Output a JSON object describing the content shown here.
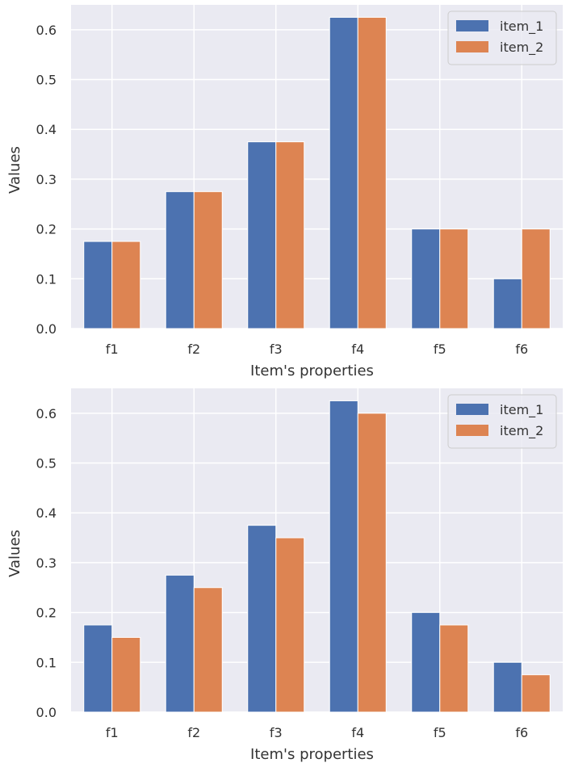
{
  "chart_data": [
    {
      "type": "bar",
      "categories": [
        "f1",
        "f2",
        "f3",
        "f4",
        "f5",
        "f6"
      ],
      "series": [
        {
          "name": "item_1",
          "values": [
            0.175,
            0.275,
            0.375,
            0.625,
            0.2,
            0.1
          ]
        },
        {
          "name": "item_2",
          "values": [
            0.175,
            0.275,
            0.375,
            0.625,
            0.2,
            0.2
          ]
        }
      ],
      "xlabel": "Item's properties",
      "ylabel": "Values",
      "ylim": [
        0,
        0.65
      ],
      "yticks": [
        "0.0",
        "0.1",
        "0.2",
        "0.3",
        "0.4",
        "0.5",
        "0.6"
      ],
      "grid": true,
      "legend_position": "top-right"
    },
    {
      "type": "bar",
      "categories": [
        "f1",
        "f2",
        "f3",
        "f4",
        "f5",
        "f6"
      ],
      "series": [
        {
          "name": "item_1",
          "values": [
            0.175,
            0.275,
            0.375,
            0.625,
            0.2,
            0.1
          ]
        },
        {
          "name": "item_2",
          "values": [
            0.15,
            0.25,
            0.35,
            0.6,
            0.175,
            0.075
          ]
        }
      ],
      "xlabel": "Item's properties",
      "ylabel": "Values",
      "ylim": [
        0,
        0.65
      ],
      "yticks": [
        "0.0",
        "0.1",
        "0.2",
        "0.3",
        "0.4",
        "0.5",
        "0.6"
      ],
      "grid": true,
      "legend_position": "top-right"
    }
  ],
  "colors": {
    "item_1": "#4c72b0",
    "item_2": "#dd8452",
    "plot_background": "#eaeaf2",
    "grid": "#ffffff"
  }
}
